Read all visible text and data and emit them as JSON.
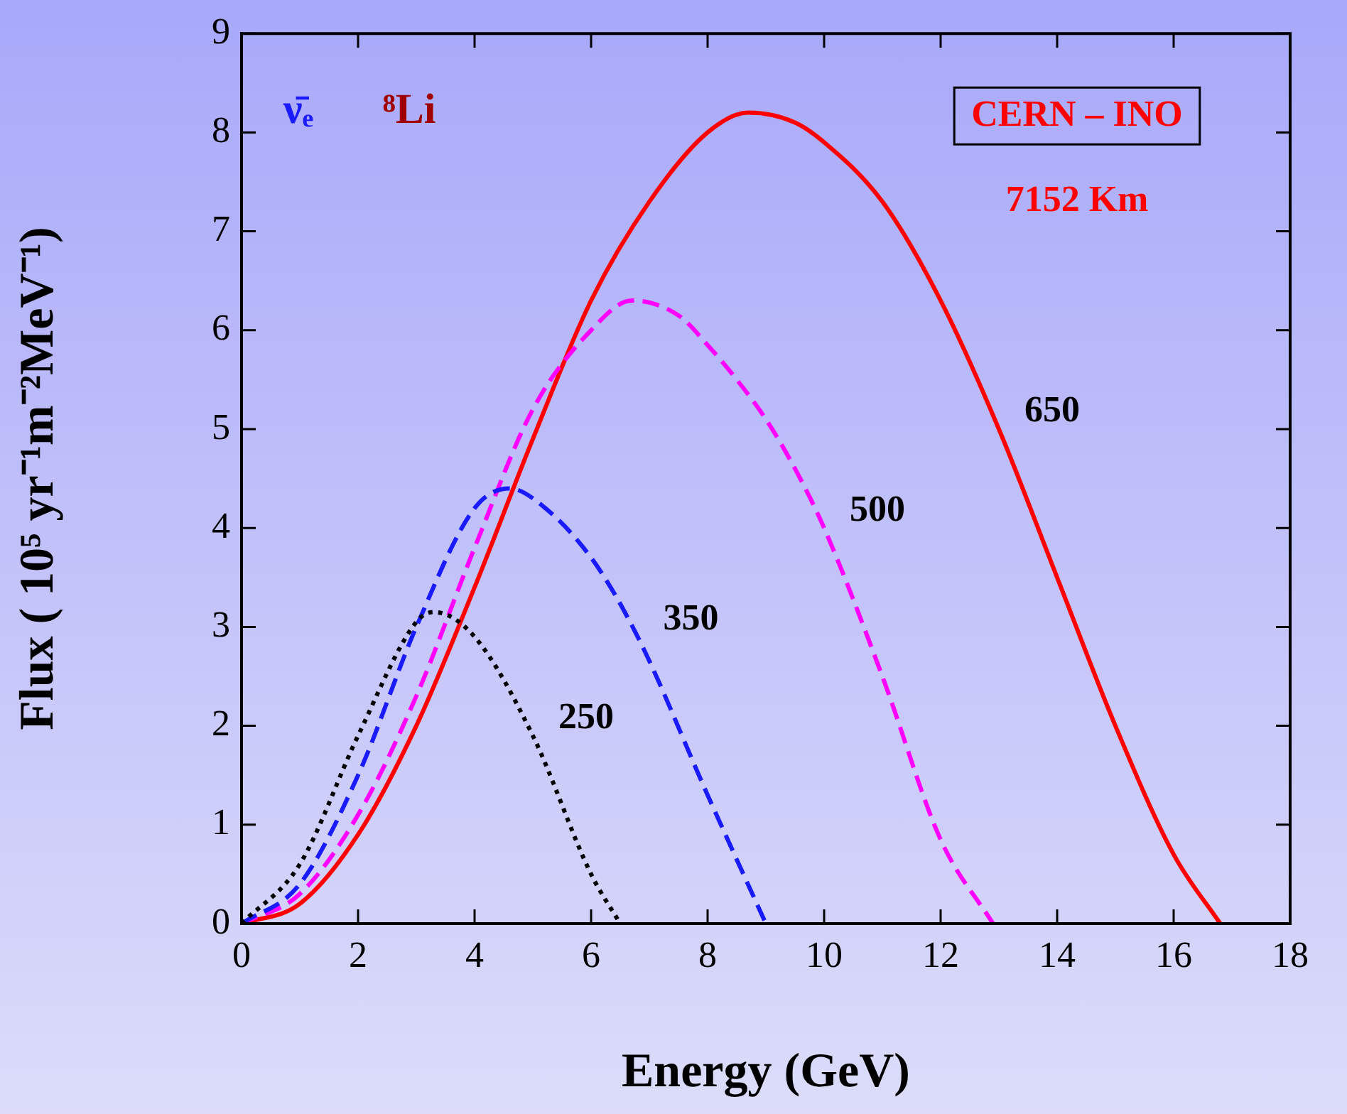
{
  "chart_data": {
    "type": "line",
    "xlabel": "Energy (GeV)",
    "ylabel": "Flux ( 10⁵ yr⁻¹m⁻²MeV⁻¹)",
    "xlim": [
      0,
      18
    ],
    "xticks": [
      0,
      2,
      4,
      6,
      8,
      10,
      12,
      14,
      16,
      18
    ],
    "ylim": [
      0,
      9
    ],
    "yticks": [
      0,
      1,
      2,
      3,
      4,
      5,
      6,
      7,
      8,
      9
    ],
    "grid": false,
    "legend": false,
    "marker": "none",
    "annotations": [
      "ν̄ₑ",
      "⁸Li",
      "CERN – INO",
      "7152 Km"
    ],
    "series": [
      {
        "name": "250",
        "color": "#000000",
        "line_style": "dotted",
        "x": [
          0,
          1,
          2,
          3,
          3.3,
          4,
          5,
          6,
          6.5
        ],
        "values": [
          0,
          0.6,
          1.9,
          3.05,
          3.15,
          2.9,
          1.9,
          0.5,
          0
        ]
      },
      {
        "name": "350",
        "color": "#1a1aff",
        "line_style": "dashed",
        "x": [
          0,
          1,
          2,
          3,
          4,
          4.6,
          5,
          6,
          6.8,
          8,
          9
        ],
        "values": [
          0,
          0.4,
          1.5,
          3.0,
          4.2,
          4.4,
          4.3,
          3.7,
          2.9,
          1.3,
          0
        ]
      },
      {
        "name": "500",
        "color": "#ff00ff",
        "line_style": "dashed",
        "x": [
          0,
          1,
          2,
          3,
          4,
          5,
          6,
          6.7,
          7.5,
          8,
          8.5,
          9,
          9.5,
          10,
          11,
          12,
          12.9
        ],
        "values": [
          0,
          0.3,
          1.1,
          2.3,
          3.8,
          5.2,
          6.0,
          6.3,
          6.15,
          5.85,
          5.5,
          5.1,
          4.6,
          4.0,
          2.5,
          0.85,
          0
        ]
      },
      {
        "name": "650",
        "color": "#ff0000",
        "line_style": "solid",
        "x": [
          0,
          1,
          2,
          3,
          4,
          5,
          6,
          7,
          8,
          8.7,
          9.5,
          10,
          11,
          12,
          13,
          14,
          15,
          16,
          16.8
        ],
        "values": [
          0,
          0.2,
          0.9,
          2.0,
          3.4,
          4.9,
          6.3,
          7.3,
          8.0,
          8.2,
          8.1,
          7.9,
          7.3,
          6.3,
          5.0,
          3.5,
          2.0,
          0.7,
          0
        ]
      }
    ]
  }
}
